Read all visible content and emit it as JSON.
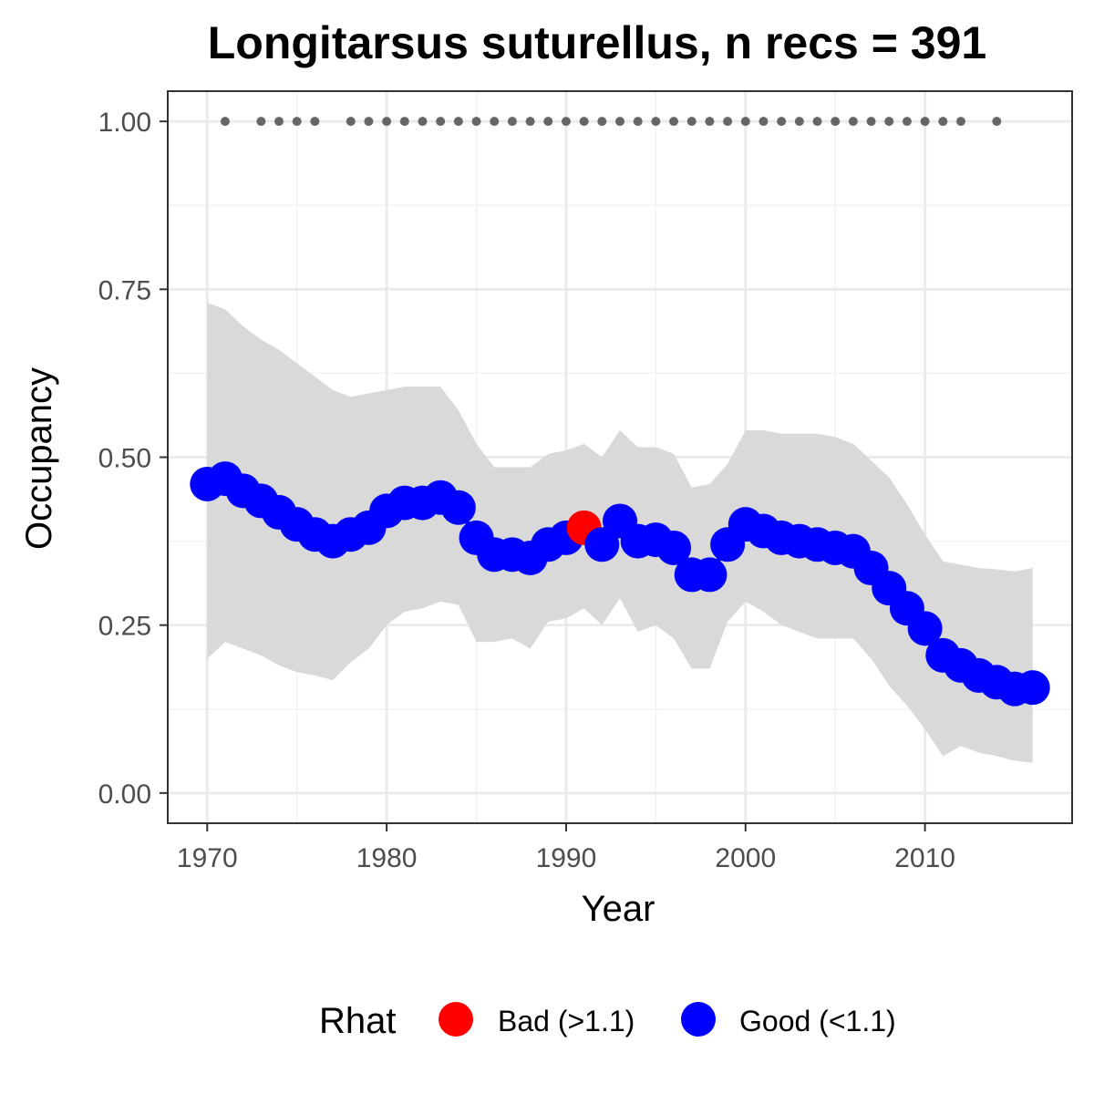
{
  "chart_data": {
    "type": "line",
    "title": "Longitarsus suturellus, n recs = 391",
    "xlabel": "Year",
    "ylabel": "Occupancy",
    "xlim": [
      1967.8,
      1918
    ],
    "ylim": [
      -0.045,
      1.045
    ],
    "x_ticks": [
      1970,
      1980,
      1990,
      2000,
      2010
    ],
    "y_ticks": [
      0.0,
      0.25,
      0.5,
      0.75,
      1.0
    ],
    "x_tick_labels": [
      "1970",
      "1980",
      "1990",
      "2000",
      "2010"
    ],
    "y_tick_labels": [
      "0.00",
      "0.25",
      "0.50",
      "0.75",
      "1.00"
    ],
    "grid": true,
    "legend": {
      "title": "Rhat",
      "position": "bottom",
      "entries": [
        {
          "label": "Bad (>1.1)",
          "color": "#ff0000"
        },
        {
          "label": "Good (<1.1)",
          "color": "#0000ff"
        }
      ]
    },
    "colors": {
      "bad": "#ff0000",
      "good": "#0000ff",
      "ribbon": "#d9d9d9",
      "records": "#666666"
    },
    "x": [
      1970,
      1971,
      1972,
      1973,
      1974,
      1975,
      1976,
      1977,
      1978,
      1979,
      1980,
      1981,
      1982,
      1983,
      1984,
      1985,
      1986,
      1987,
      1988,
      1989,
      1990,
      1991,
      1992,
      1993,
      1994,
      1995,
      1996,
      1997,
      1998,
      1999,
      2000,
      2001,
      2002,
      2003,
      2004,
      2005,
      2006,
      2007,
      2008,
      2009,
      2010,
      2011,
      2012,
      2013,
      2014,
      2015,
      2016
    ],
    "series": [
      {
        "values": [
          0.46,
          0.468,
          0.45,
          0.435,
          0.418,
          0.4,
          0.385,
          0.375,
          0.385,
          0.395,
          0.42,
          0.432,
          0.432,
          0.44,
          0.425,
          0.38,
          0.355,
          0.355,
          0.35,
          0.37,
          0.38,
          0.395,
          0.37,
          0.405,
          0.375,
          0.377,
          0.365,
          0.325,
          0.325,
          0.37,
          0.4,
          0.39,
          0.38,
          0.375,
          0.37,
          0.365,
          0.36,
          0.335,
          0.305,
          0.275,
          0.245,
          0.205,
          0.19,
          0.175,
          0.165,
          0.155,
          0.157
        ],
        "lower": [
          0.2,
          0.225,
          0.215,
          0.205,
          0.19,
          0.18,
          0.175,
          0.168,
          0.195,
          0.215,
          0.25,
          0.27,
          0.275,
          0.285,
          0.28,
          0.225,
          0.225,
          0.23,
          0.215,
          0.255,
          0.26,
          0.275,
          0.25,
          0.29,
          0.24,
          0.25,
          0.23,
          0.185,
          0.185,
          0.255,
          0.285,
          0.27,
          0.25,
          0.24,
          0.23,
          0.23,
          0.23,
          0.2,
          0.16,
          0.13,
          0.095,
          0.055,
          0.07,
          0.06,
          0.055,
          0.048,
          0.045
        ],
        "upper": [
          0.73,
          0.72,
          0.695,
          0.675,
          0.66,
          0.64,
          0.62,
          0.6,
          0.59,
          0.595,
          0.6,
          0.605,
          0.605,
          0.605,
          0.57,
          0.52,
          0.485,
          0.485,
          0.485,
          0.505,
          0.51,
          0.52,
          0.5,
          0.54,
          0.515,
          0.515,
          0.505,
          0.455,
          0.46,
          0.49,
          0.54,
          0.54,
          0.535,
          0.535,
          0.535,
          0.53,
          0.52,
          0.495,
          0.47,
          0.43,
          0.385,
          0.345,
          0.34,
          0.335,
          0.333,
          0.33,
          0.335
        ],
        "rhat": [
          "Good",
          "Good",
          "Good",
          "Good",
          "Good",
          "Good",
          "Good",
          "Good",
          "Good",
          "Good",
          "Good",
          "Good",
          "Good",
          "Good",
          "Good",
          "Good",
          "Good",
          "Good",
          "Good",
          "Good",
          "Good",
          "Bad",
          "Good",
          "Good",
          "Good",
          "Good",
          "Good",
          "Good",
          "Good",
          "Good",
          "Good",
          "Good",
          "Good",
          "Good",
          "Good",
          "Good",
          "Good",
          "Good",
          "Good",
          "Good",
          "Good",
          "Good",
          "Good",
          "Good",
          "Good",
          "Good",
          "Good"
        ]
      }
    ],
    "record_years": [
      1971,
      1973,
      1974,
      1975,
      1976,
      1978,
      1979,
      1980,
      1981,
      1982,
      1983,
      1984,
      1985,
      1986,
      1987,
      1988,
      1989,
      1990,
      1991,
      1992,
      1993,
      1994,
      1995,
      1996,
      1997,
      1998,
      1999,
      2000,
      2001,
      2002,
      2003,
      2004,
      2005,
      2006,
      2007,
      2008,
      2009,
      2010,
      2011,
      2012,
      2014
    ],
    "record_value": 1.0
  }
}
